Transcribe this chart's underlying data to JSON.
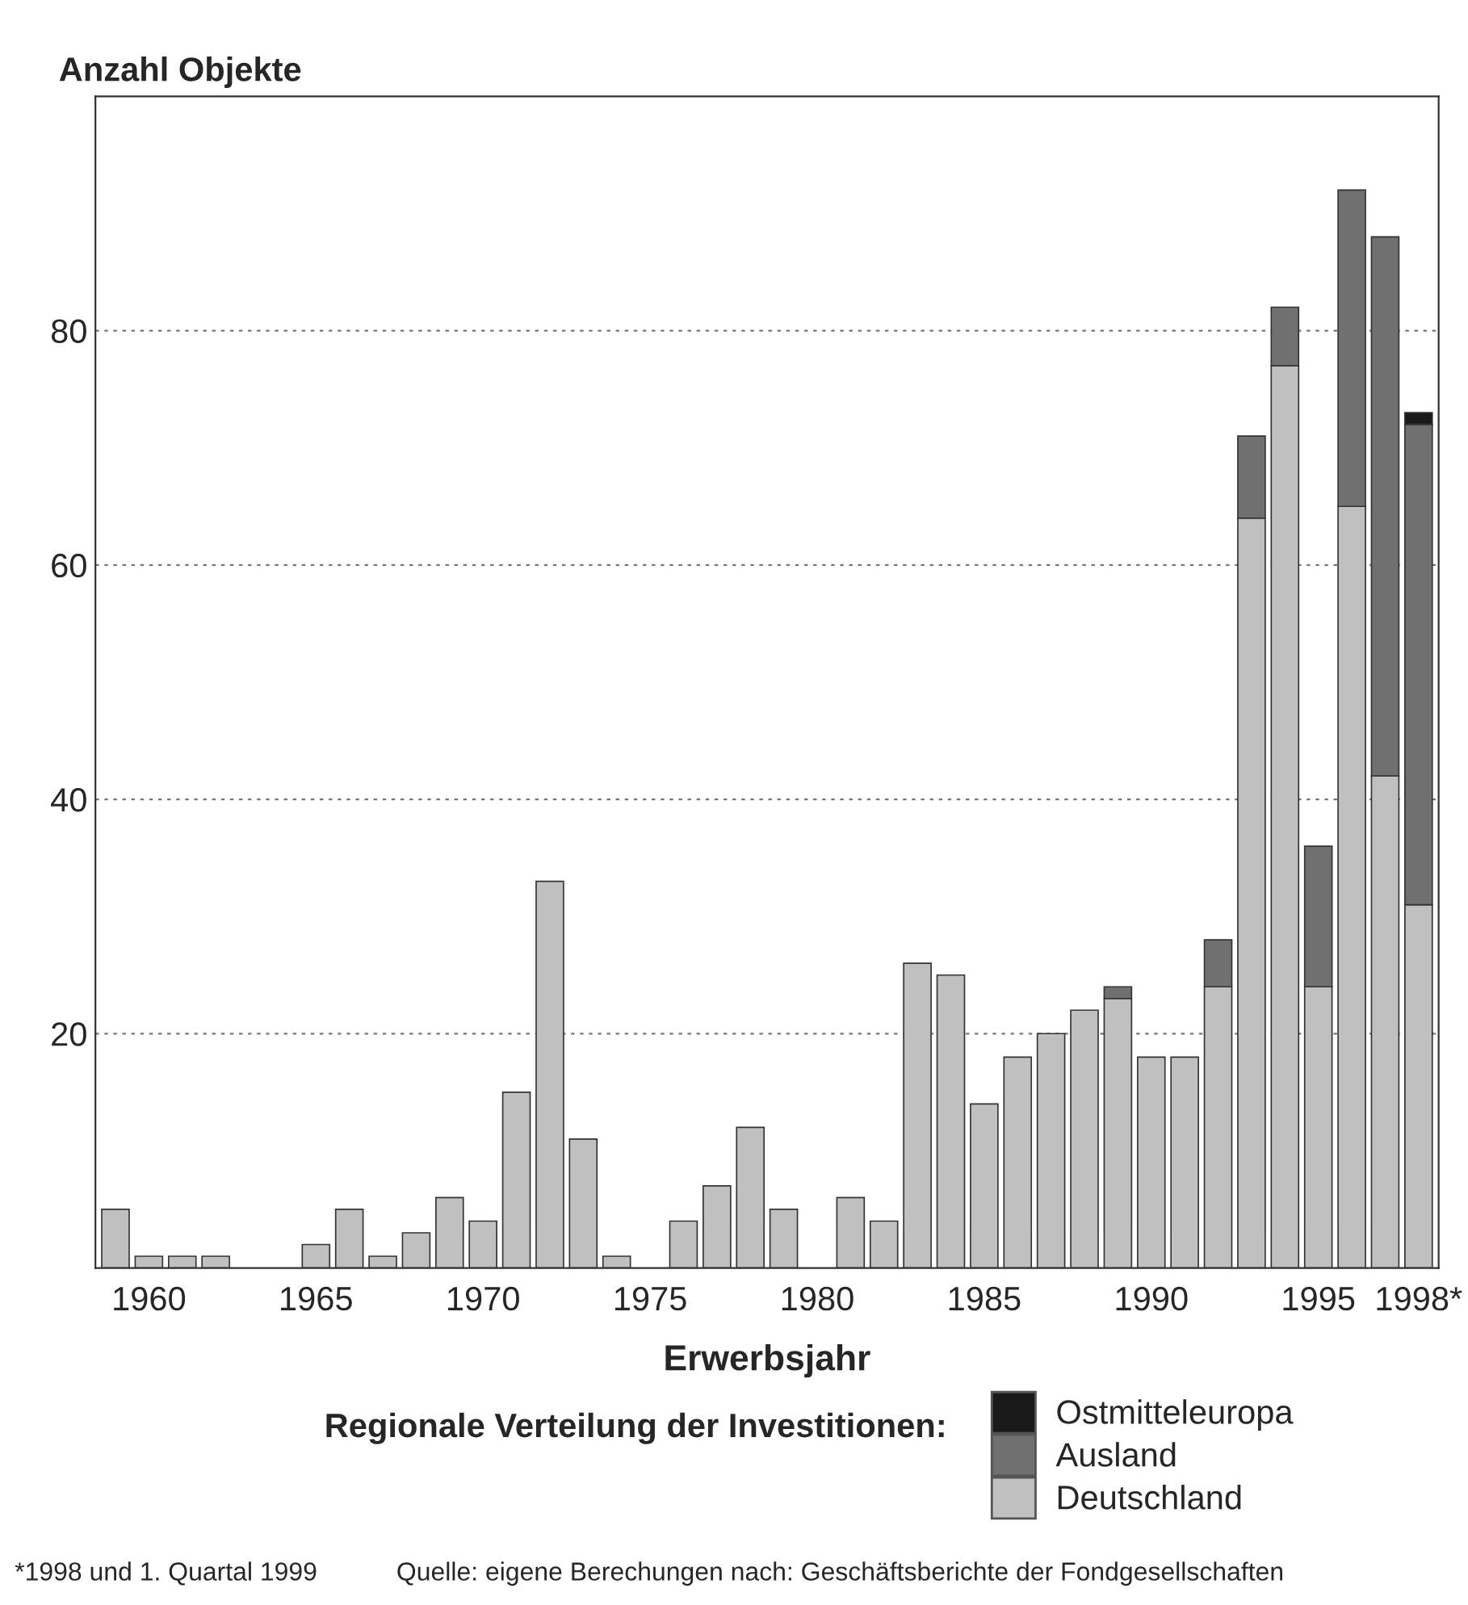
{
  "chart_data": {
    "type": "bar",
    "stacked": true,
    "ylabel": "Anzahl Objekte",
    "xlabel": "Erwerbsjahr",
    "legend_title": "Regionale Verteilung der Investitionen:",
    "categories": [
      null,
      "1960",
      null,
      null,
      null,
      null,
      "1965",
      null,
      null,
      null,
      null,
      "1970",
      null,
      null,
      null,
      null,
      "1975",
      null,
      null,
      null,
      null,
      "1980",
      null,
      null,
      null,
      null,
      "1985",
      null,
      null,
      null,
      null,
      "1990",
      null,
      null,
      null,
      null,
      "1995",
      null,
      null,
      "1998*"
    ],
    "series": [
      {
        "name": "Deutschland",
        "color": "#c0c0c0",
        "values": [
          5,
          1,
          1,
          1,
          null,
          null,
          2,
          5,
          1,
          3,
          6,
          4,
          15,
          33,
          11,
          1,
          null,
          4,
          7,
          12,
          5,
          null,
          6,
          4,
          26,
          25,
          14,
          18,
          20,
          22,
          23,
          18,
          18,
          24,
          64,
          77,
          24,
          65,
          42,
          31
        ]
      },
      {
        "name": "Ausland",
        "color": "#707070",
        "values": [
          null,
          null,
          null,
          null,
          null,
          null,
          null,
          null,
          null,
          null,
          null,
          null,
          null,
          null,
          null,
          null,
          null,
          null,
          null,
          null,
          null,
          null,
          null,
          null,
          null,
          null,
          null,
          null,
          null,
          null,
          1,
          null,
          null,
          4,
          7,
          5,
          12,
          27,
          46,
          41
        ]
      },
      {
        "name": "Ostmitteleuropa",
        "color": "#1a1a1a",
        "values": [
          null,
          null,
          null,
          null,
          null,
          null,
          null,
          null,
          null,
          null,
          null,
          null,
          null,
          null,
          null,
          null,
          null,
          null,
          null,
          null,
          null,
          null,
          null,
          null,
          null,
          null,
          null,
          null,
          null,
          null,
          null,
          null,
          null,
          null,
          null,
          null,
          null,
          null,
          null,
          1
        ]
      }
    ],
    "ylim": [
      0,
      100
    ],
    "yticks": [
      20,
      40,
      60,
      80
    ],
    "grid": "y",
    "legend": "bottom",
    "annotations": [
      "*1998 und 1. Quartal 1999",
      "Quelle: eigene Berechungen nach: Geschäftsberichte der Fondgesellschaften"
    ]
  }
}
